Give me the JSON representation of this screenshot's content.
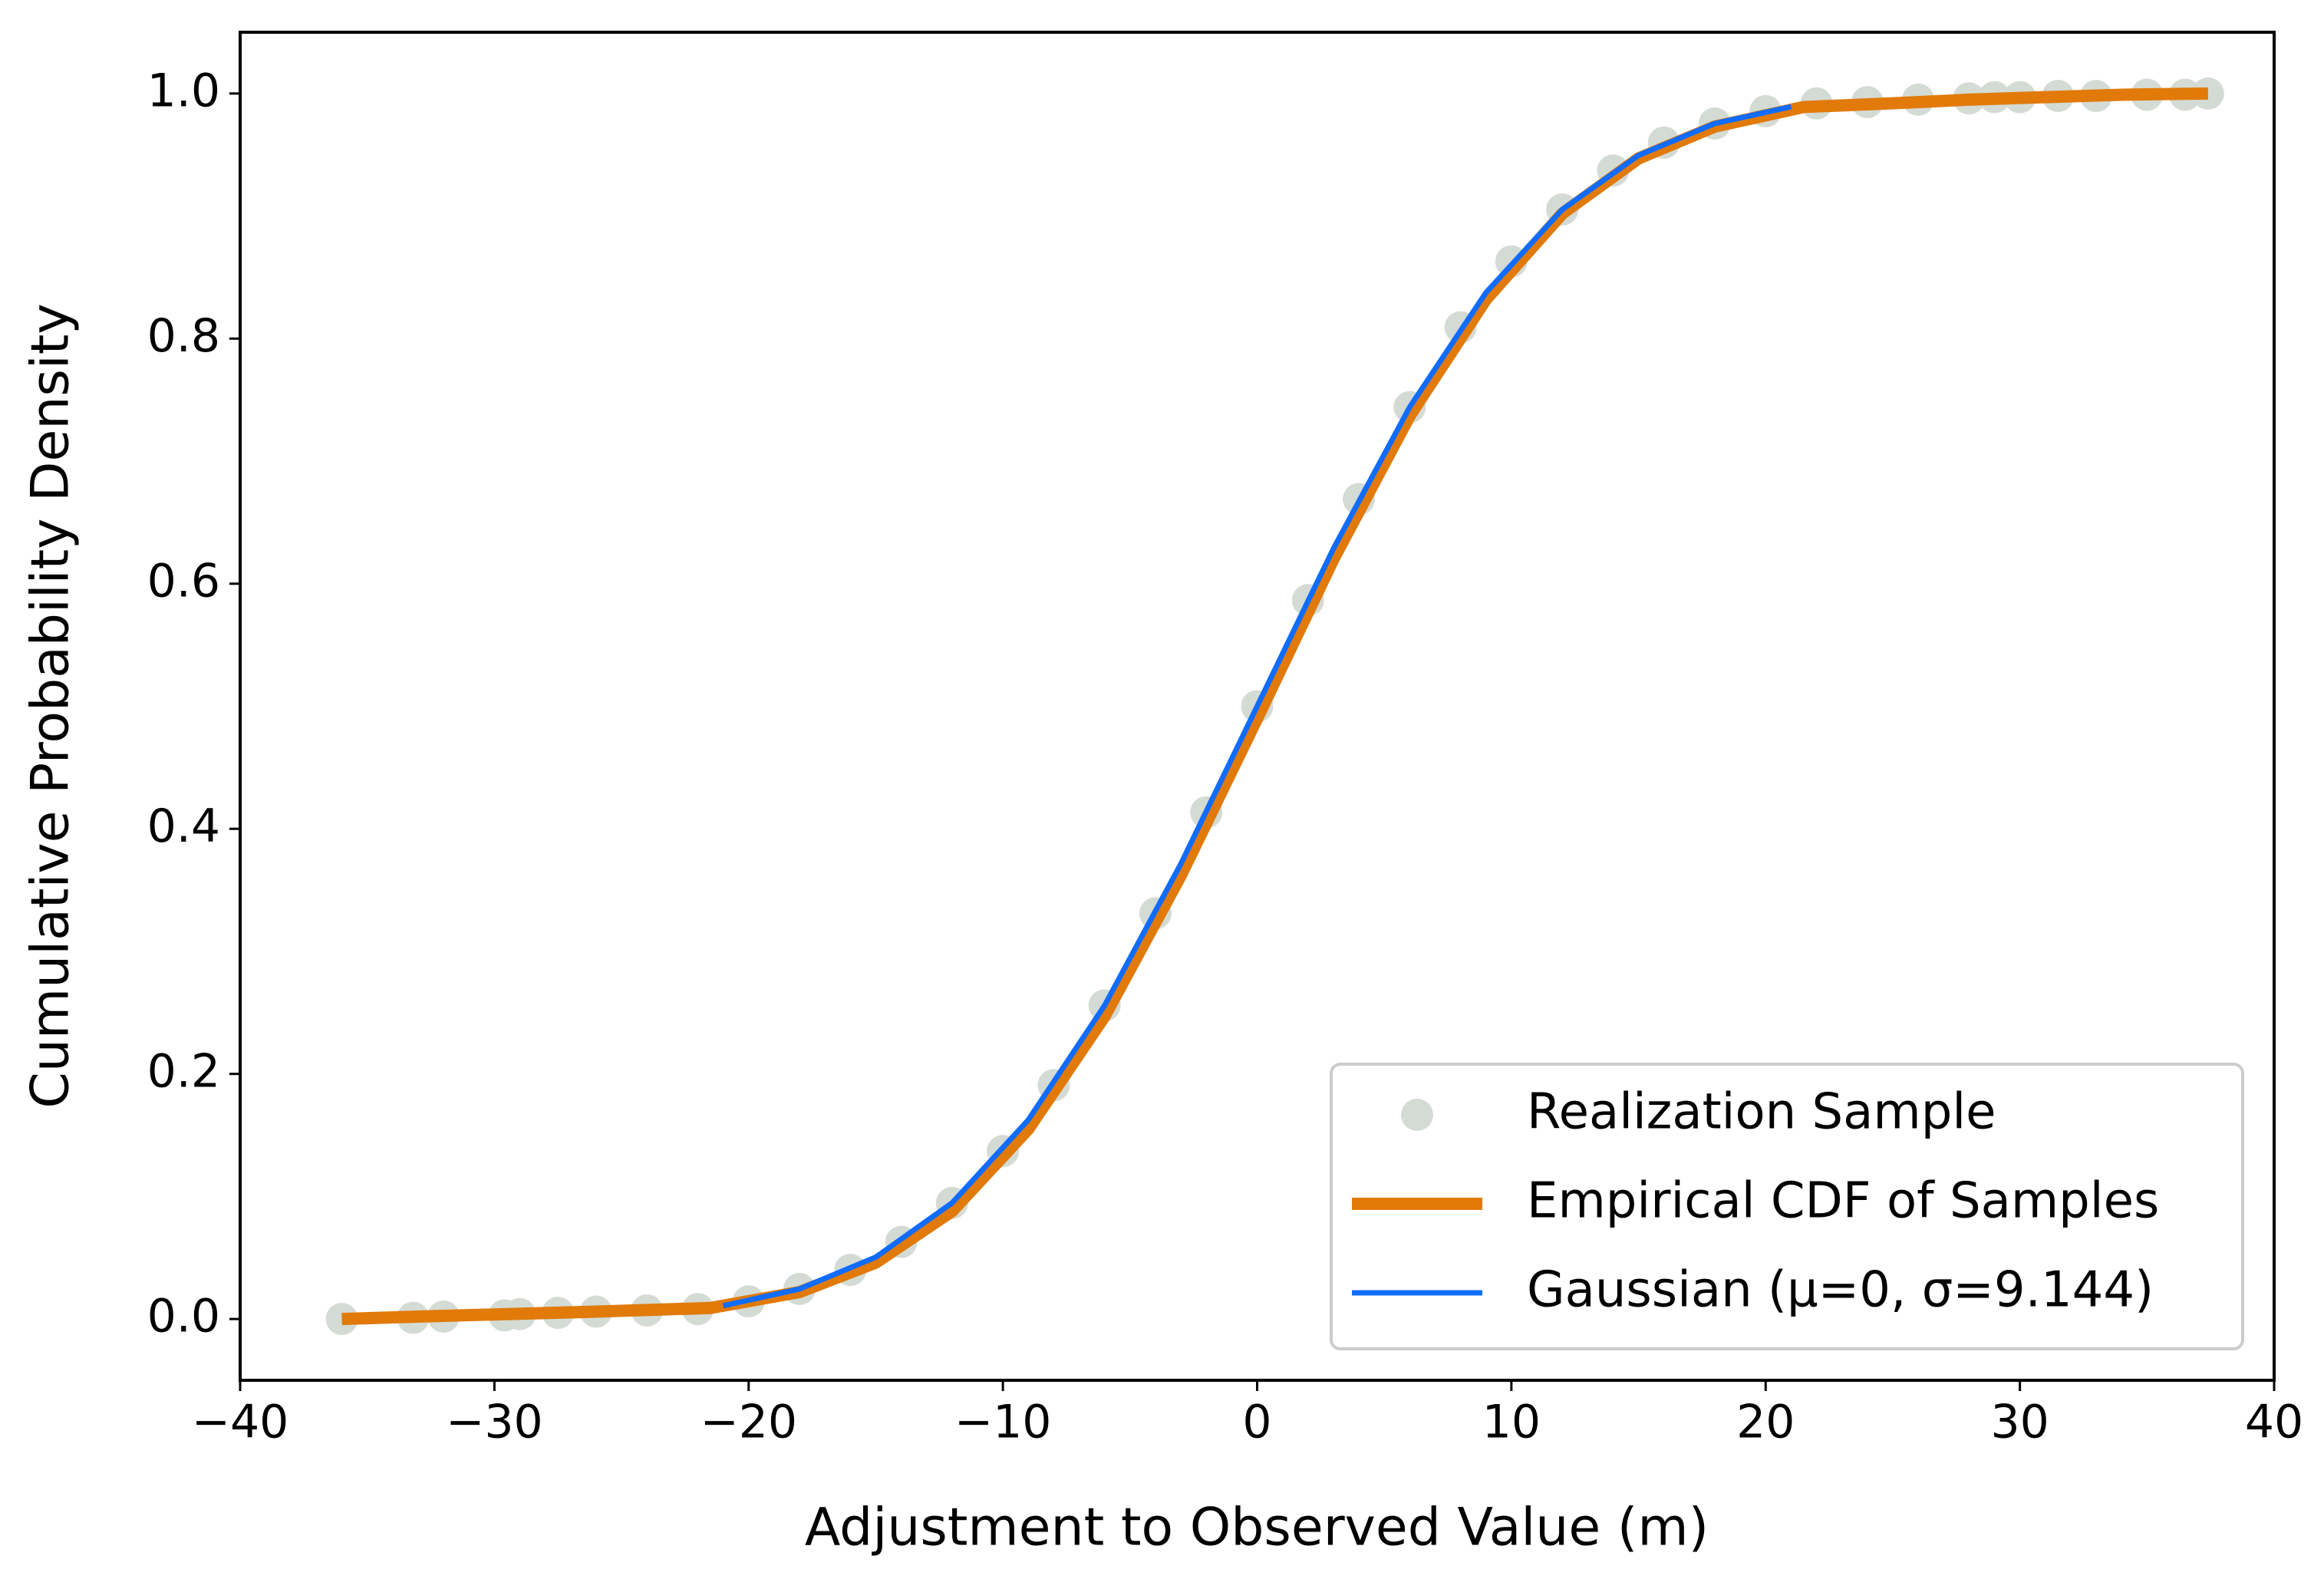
{
  "chart_data": {
    "type": "cdf",
    "xlabel": "Adjustment to Observed Value (m)",
    "ylabel": "Cumulative Probability Density",
    "xlim": [
      -40,
      40
    ],
    "ylim": [
      -0.05,
      1.05
    ],
    "xticks": [
      {
        "value": -40,
        "label": "−40"
      },
      {
        "value": -30,
        "label": "−30"
      },
      {
        "value": -20,
        "label": "−20"
      },
      {
        "value": -10,
        "label": "−10"
      },
      0,
      10,
      20,
      30,
      40
    ],
    "yticks": [
      {
        "value": 0,
        "label": "0.0"
      },
      0.2,
      0.4,
      0.6,
      0.8,
      {
        "value": 1,
        "label": "1.0"
      }
    ],
    "legend": "lower right",
    "series": [
      {
        "name": "Realization Sample",
        "kind": "scatter",
        "color": "#d4dbd4",
        "x": [
          -36,
          -33.2,
          -32,
          -29.6,
          -29,
          -27.5,
          -26,
          -24,
          -22,
          -20,
          -18,
          -16,
          -14,
          -12,
          -10,
          -8,
          -6,
          -4,
          -2,
          0,
          2,
          4,
          6,
          8,
          10,
          12,
          14,
          16,
          18,
          20,
          22,
          24,
          26,
          28,
          29,
          30,
          31.5,
          33,
          35,
          36.5,
          37.4
        ],
        "values": [
          0,
          0.001,
          0.002,
          0.003,
          0.004,
          0.005,
          0.006,
          0.007,
          0.0081,
          0.0144,
          0.0245,
          0.0401,
          0.0629,
          0.0947,
          0.137,
          0.1908,
          0.2559,
          0.331,
          0.4134,
          0.5,
          0.5866,
          0.669,
          0.7441,
          0.8092,
          0.863,
          0.9053,
          0.9371,
          0.9599,
          0.9755,
          0.9856,
          0.9919,
          0.993,
          0.995,
          0.996,
          0.997,
          0.997,
          0.998,
          0.998,
          0.999,
          0.999,
          1.0
        ]
      },
      {
        "name": "Empirical CDF of Samples",
        "kind": "line",
        "color": "#e17a09",
        "x": [
          -36,
          -33,
          -29.5,
          -26,
          -21.5,
          -18,
          -15,
          -12,
          -9,
          -6,
          -3,
          0,
          3,
          6,
          9,
          12,
          15,
          18,
          21.5,
          25,
          28,
          31,
          34,
          37.4
        ],
        "values": [
          0,
          0.002,
          0.004,
          0.006,
          0.009,
          0.022,
          0.046,
          0.088,
          0.155,
          0.247,
          0.362,
          0.49,
          0.62,
          0.737,
          0.832,
          0.902,
          0.947,
          0.973,
          0.989,
          0.992,
          0.995,
          0.997,
          0.999,
          1.0
        ]
      },
      {
        "name": "Gaussian (μ=0, σ=9.144)",
        "kind": "line",
        "color": "#0f6cff",
        "x": [
          -21,
          -18,
          -15,
          -12,
          -9,
          -6,
          -3,
          0,
          3,
          6,
          9,
          12,
          15,
          18,
          21
        ],
        "values": [
          0.0108,
          0.0245,
          0.0505,
          0.0947,
          0.1625,
          0.2559,
          0.3714,
          0.5,
          0.6286,
          0.7441,
          0.8375,
          0.9053,
          0.9495,
          0.9755,
          0.9892
        ]
      }
    ]
  }
}
